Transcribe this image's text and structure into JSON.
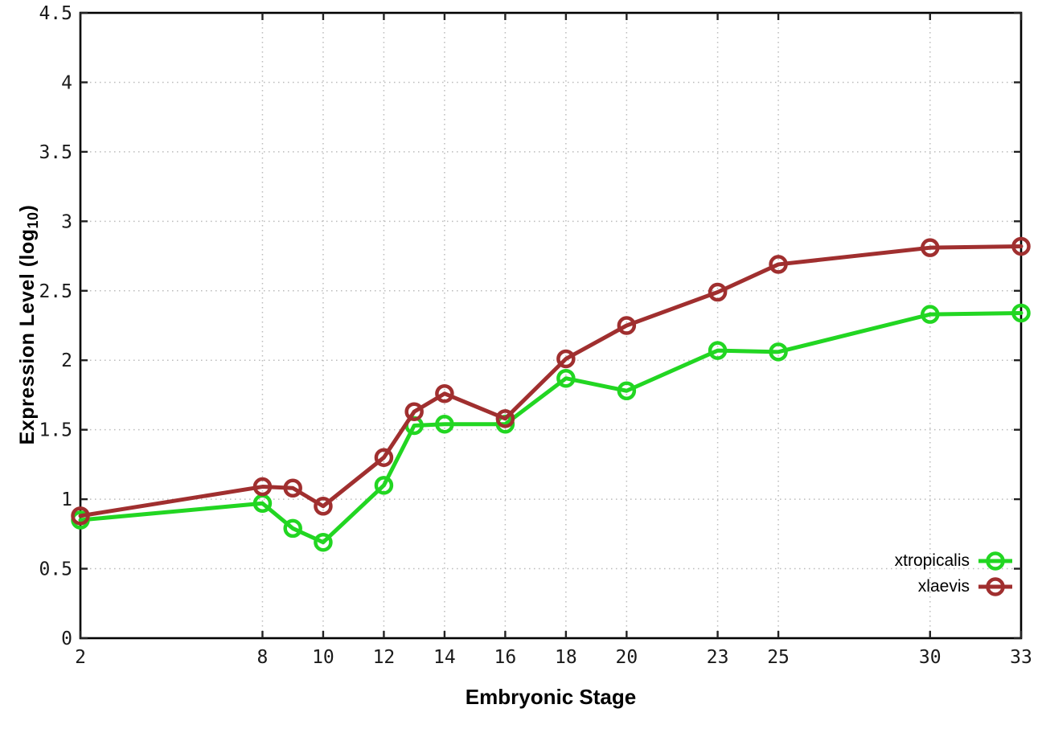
{
  "chart_data": {
    "type": "line",
    "title": "",
    "xlabel": "Embryonic Stage",
    "ylabel": {
      "prefix": "Expression Level (log",
      "sub": "10",
      "suffix": ")"
    },
    "xlim": [
      2,
      33
    ],
    "ylim": [
      0,
      4.5
    ],
    "grid": true,
    "legend_position": "bottom-right-inside",
    "x_ticks": [
      2,
      8,
      10,
      12,
      14,
      16,
      18,
      20,
      23,
      25,
      30,
      33
    ],
    "x_tick_labels": [
      "2",
      "8",
      "10",
      "12",
      "14",
      "16",
      "18",
      "20",
      "23",
      "25",
      "30",
      "33"
    ],
    "y_ticks": [
      0,
      0.5,
      1,
      1.5,
      2,
      2.5,
      3,
      3.5,
      4,
      4.5
    ],
    "y_tick_labels": [
      "0",
      "0.5",
      "1",
      "1.5",
      "2",
      "2.5",
      "3",
      "3.5",
      "4",
      "4.5"
    ],
    "x": [
      2,
      8,
      9,
      10,
      12,
      13,
      14,
      16,
      18,
      20,
      23,
      25,
      30,
      33
    ],
    "series": [
      {
        "name": "xtropicalis",
        "color": "#22d622",
        "values": [
          0.85,
          0.97,
          0.79,
          0.69,
          1.1,
          1.53,
          1.54,
          1.54,
          1.87,
          1.78,
          2.07,
          2.06,
          2.33,
          2.34
        ]
      },
      {
        "name": "xlaevis",
        "color": "#a02f2f",
        "values": [
          0.88,
          1.09,
          1.08,
          0.95,
          1.3,
          1.63,
          1.76,
          1.58,
          2.01,
          2.25,
          2.49,
          2.69,
          2.81,
          2.82
        ]
      }
    ],
    "colors": {
      "grid": "#bbbbbb",
      "axis": "#000000",
      "tick": "#1a1a1a",
      "background": "#ffffff"
    }
  }
}
